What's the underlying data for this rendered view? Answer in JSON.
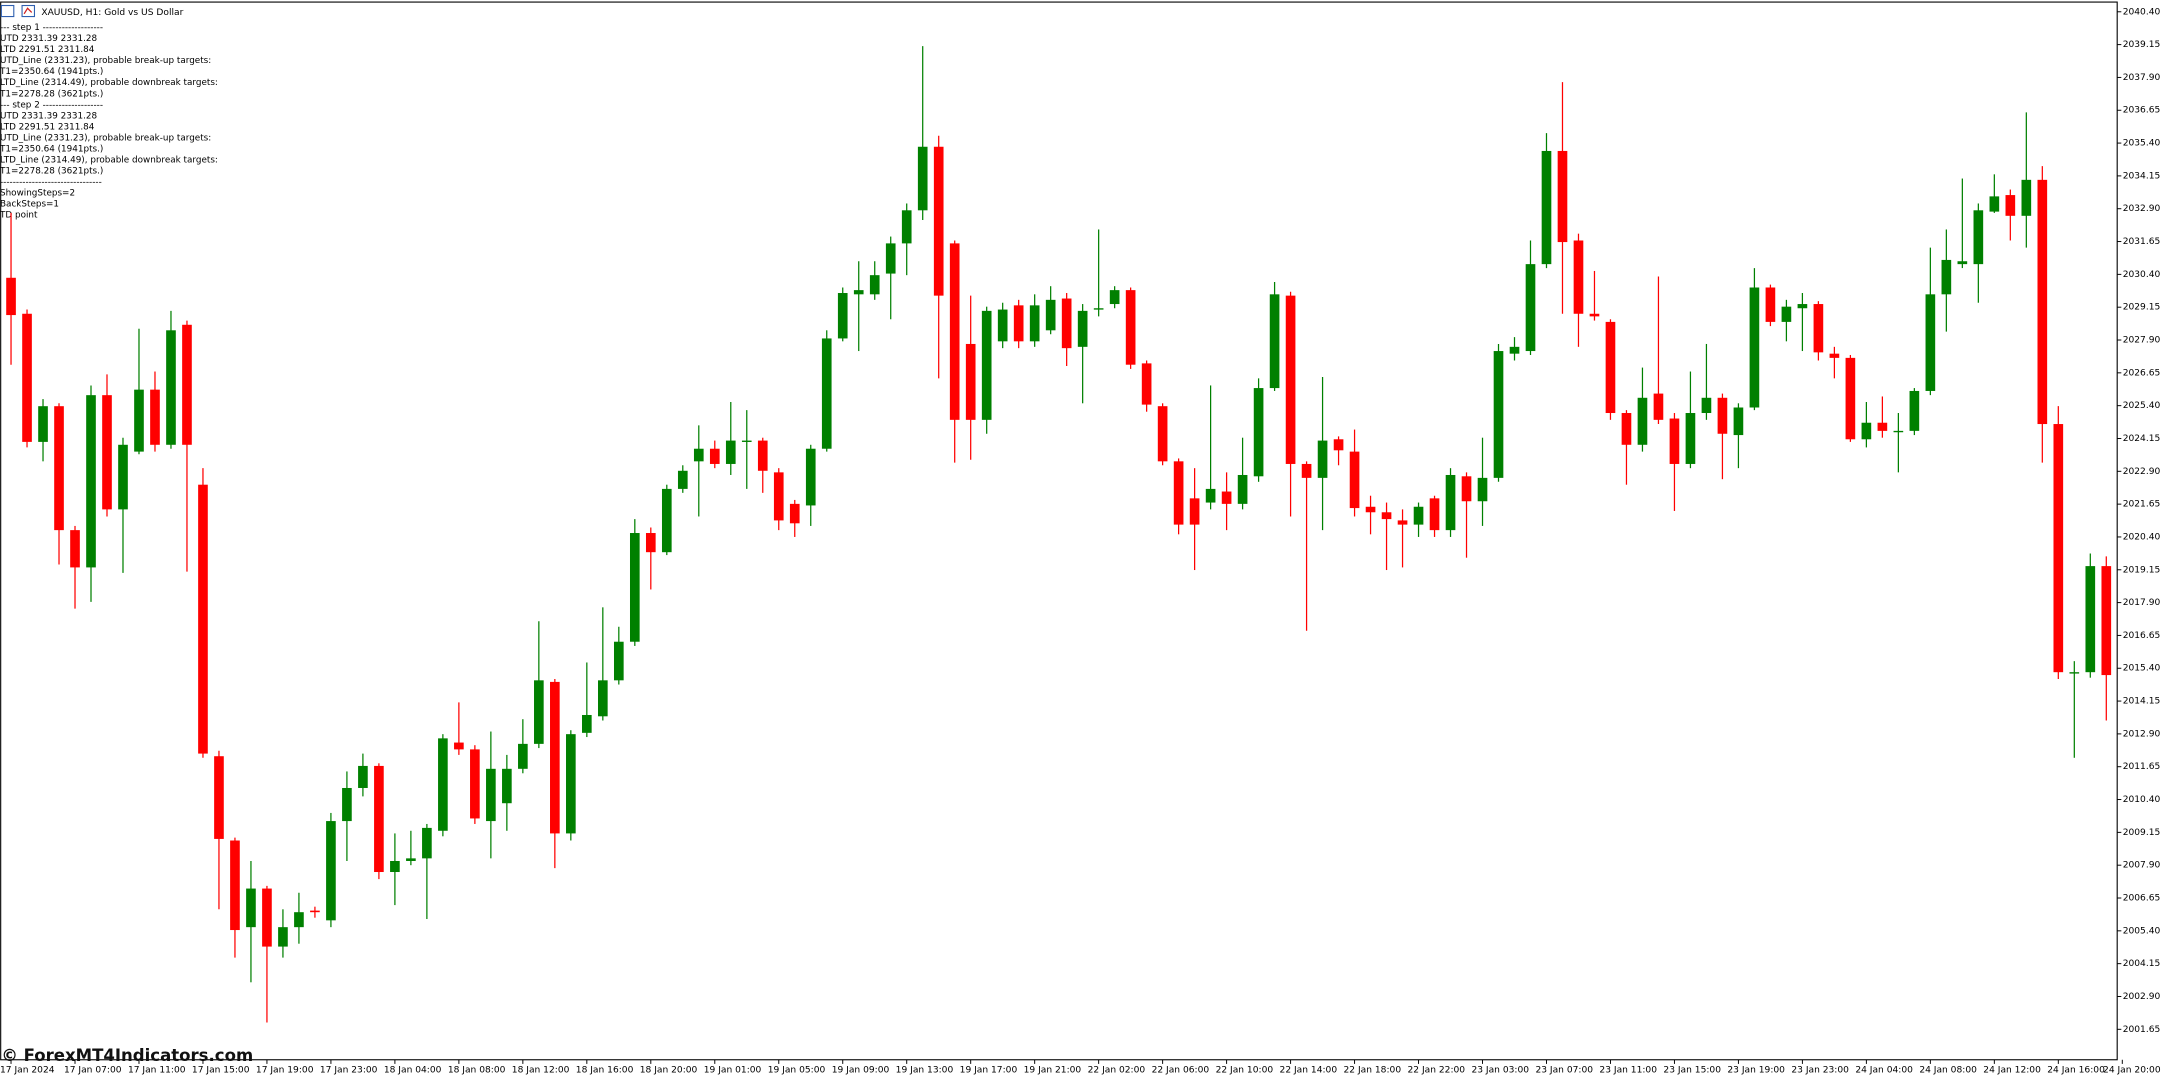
{
  "chart_data": {
    "type": "candlestick",
    "title": "XAUUSD, H1:  Gold vs US Dollar",
    "annotations": [
      "---   step 1   -------------------",
      "UTD  2331.39  2331.28",
      "LTD  2291.51  2311.84",
      "UTD_Line (2331.23), probable break-up targets:",
      "T1=2350.64 (1941pts.)",
      "LTD_Line (2314.49), probable downbreak targets:",
      "T1=2278.28 (3621pts.)",
      "---   step 2   -------------------",
      "UTD  2331.39  2331.28",
      "LTD  2291.51  2311.84",
      "UTD_Line (2331.23), probable break-up targets:",
      "T1=2350.64 (1941pts.)",
      "LTD_Line (2314.49), probable downbreak targets:",
      "T1=2278.28 (3621pts.)",
      "--------------------------------",
      "ShowingSteps=2",
      "BackSteps=1",
      "TD point"
    ],
    "watermark": "© ForexMT4Indicators.com",
    "up_color": "#008000",
    "down_color": "#ff0000",
    "open": [
      2030.27,
      2028.9,
      2024.02,
      2025.38,
      2020.66,
      2019.24,
      2025.8,
      2021.45,
      2023.65,
      2026.01,
      2023.91,
      2028.48,
      2022.39,
      2012.05,
      2008.84,
      2005.54,
      2007.01,
      2004.8,
      2005.54,
      2006.17,
      2005.8,
      2009.58,
      2010.84,
      2011.68,
      2007.64,
      2008.06,
      2008.16,
      2009.21,
      2012.57,
      2012.31,
      2009.58,
      2010.26,
      2011.57,
      2012.52,
      2014.88,
      2009.11,
      2012.94,
      2013.57,
      2014.94,
      2016.41,
      2020.55,
      2019.82,
      2022.23,
      2023.28,
      2023.76,
      2023.18,
      2024.02,
      2024.07,
      2022.86,
      2021.66,
      2021.6,
      2023.76,
      2027.96,
      2029.64,
      2029.64,
      2030.43,
      2031.58,
      2032.84,
      2035.26,
      2031.58,
      2027.75,
      2024.86,
      2027.85,
      2029.22,
      2027.85,
      2028.27,
      2029.48,
      2027.64,
      2029.06,
      2029.27,
      2029.8,
      2027.01,
      2025.38,
      2023.28,
      2021.87,
      2021.71,
      2022.13,
      2021.66,
      2022.71,
      2026.07,
      2029.59,
      2023.18,
      2022.65,
      2024.12,
      2023.65,
      2021.55,
      2021.34,
      2021.03,
      2020.87,
      2021.87,
      2020.66,
      2022.71,
      2021.76,
      2022.65,
      2027.38,
      2027.48,
      2030.79,
      2035.1,
      2031.69,
      2028.9,
      2028.59,
      2025.12,
      2023.91,
      2025.86,
      2024.91,
      2023.18,
      2025.12,
      2025.7,
      2024.28,
      2025.33,
      2029.9,
      2028.59,
      2029.11,
      2029.27,
      2027.38,
      2027.22,
      2024.12,
      2024.75,
      2024.44,
      2024.44,
      2025.96,
      2029.64,
      2030.79,
      2030.79,
      2032.79,
      2033.42,
      2032.63,
      2034.0,
      2024.7,
      2015.25,
      2015.25,
      2019.29
    ],
    "high": [
      2032.74,
      2029.06,
      2025.65,
      2025.49,
      2020.82,
      2026.17,
      2026.59,
      2024.18,
      2028.33,
      2026.7,
      2029.01,
      2028.64,
      2023.02,
      2012.26,
      2008.95,
      2008.06,
      2007.11,
      2006.22,
      2006.85,
      2006.32,
      2009.89,
      2011.47,
      2012.15,
      2011.78,
      2009.11,
      2009.21,
      2009.47,
      2012.89,
      2014.1,
      2012.47,
      2012.99,
      2012.1,
      2013.46,
      2017.19,
      2014.99,
      2013.04,
      2015.62,
      2017.72,
      2016.98,
      2021.08,
      2020.76,
      2022.39,
      2023.13,
      2024.65,
      2024.07,
      2025.54,
      2025.23,
      2024.18,
      2023.02,
      2021.81,
      2023.91,
      2028.27,
      2029.9,
      2030.9,
      2030.9,
      2031.84,
      2033.1,
      2039.09,
      2035.68,
      2031.69,
      2029.59,
      2029.17,
      2029.32,
      2029.43,
      2029.64,
      2029.95,
      2029.69,
      2029.27,
      2032.11,
      2029.95,
      2029.9,
      2027.12,
      2025.49,
      2023.39,
      2023.02,
      2026.17,
      2022.86,
      2024.18,
      2026.44,
      2030.11,
      2029.74,
      2023.28,
      2026.49,
      2024.23,
      2024.49,
      2021.97,
      2021.71,
      2021.45,
      2021.71,
      2021.97,
      2023.02,
      2022.86,
      2024.18,
      2027.75,
      2028.01,
      2031.69,
      2035.78,
      2037.72,
      2031.95,
      2030.53,
      2028.69,
      2025.23,
      2026.85,
      2030.32,
      2025.12,
      2026.7,
      2027.75,
      2025.86,
      2025.49,
      2030.64,
      2030.01,
      2029.43,
      2029.69,
      2029.38,
      2027.64,
      2027.33,
      2025.54,
      2025.75,
      2025.12,
      2026.07,
      2031.42,
      2032.11,
      2034.05,
      2033.1,
      2034.21,
      2033.63,
      2036.57,
      2034.52,
      2025.38,
      2015.67,
      2019.77,
      2019.66
    ],
    "low": [
      2026.96,
      2023.81,
      2023.28,
      2019.35,
      2017.67,
      2017.93,
      2021.18,
      2019.03,
      2023.55,
      2023.65,
      2023.76,
      2019.08,
      2011.99,
      2006.22,
      2004.38,
      2003.44,
      2001.91,
      2004.38,
      2004.91,
      2005.9,
      2005.54,
      2008.06,
      2010.52,
      2007.37,
      2006.38,
      2007.9,
      2005.85,
      2009.0,
      2012.1,
      2009.47,
      2008.16,
      2009.21,
      2011.4,
      2012.36,
      2007.79,
      2008.84,
      2012.78,
      2013.41,
      2014.78,
      2016.25,
      2018.4,
      2019.71,
      2022.08,
      2021.18,
      2023.02,
      2022.76,
      2022.23,
      2022.08,
      2020.66,
      2020.4,
      2020.82,
      2023.65,
      2027.85,
      2027.48,
      2029.43,
      2028.69,
      2030.37,
      2032.47,
      2026.44,
      2023.23,
      2023.34,
      2024.33,
      2027.59,
      2027.59,
      2027.64,
      2028.12,
      2026.91,
      2025.49,
      2028.8,
      2029.11,
      2026.8,
      2025.17,
      2023.13,
      2020.5,
      2019.14,
      2021.45,
      2020.66,
      2021.45,
      2022.5,
      2025.96,
      2021.18,
      2016.83,
      2020.66,
      2023.13,
      2021.18,
      2020.5,
      2019.14,
      2019.24,
      2020.4,
      2020.4,
      2020.4,
      2019.61,
      2020.82,
      2022.5,
      2027.12,
      2027.33,
      2030.64,
      2028.9,
      2027.64,
      2028.64,
      2024.86,
      2022.39,
      2023.65,
      2024.7,
      2021.39,
      2023.02,
      2024.86,
      2022.6,
      2023.02,
      2025.23,
      2028.43,
      2027.85,
      2027.48,
      2027.12,
      2026.44,
      2024.02,
      2023.81,
      2024.18,
      2022.86,
      2024.28,
      2025.8,
      2028.22,
      2030.64,
      2029.32,
      2032.74,
      2031.69,
      2031.42,
      2023.23,
      2014.99,
      2011.99,
      2015.04,
      2013.41
    ],
    "close": [
      2028.85,
      2024.02,
      2025.38,
      2020.66,
      2019.24,
      2025.8,
      2021.45,
      2023.91,
      2026.01,
      2023.91,
      2028.27,
      2023.91,
      2012.15,
      2008.9,
      2005.43,
      2007.01,
      2004.8,
      2005.54,
      2006.11,
      2006.11,
      2009.58,
      2010.84,
      2011.68,
      2007.64,
      2008.06,
      2008.16,
      2009.32,
      2012.73,
      2012.31,
      2009.68,
      2011.57,
      2011.57,
      2012.52,
      2014.94,
      2009.11,
      2012.89,
      2013.62,
      2014.94,
      2016.41,
      2020.55,
      2019.82,
      2022.23,
      2022.92,
      2023.76,
      2023.18,
      2024.07,
      2024.07,
      2022.92,
      2021.03,
      2020.92,
      2023.76,
      2027.96,
      2029.69,
      2029.8,
      2030.37,
      2031.58,
      2032.84,
      2035.26,
      2029.59,
      2024.86,
      2024.86,
      2029.01,
      2029.06,
      2027.85,
      2029.22,
      2029.43,
      2027.59,
      2029.01,
      2029.11,
      2029.8,
      2026.96,
      2025.44,
      2023.28,
      2020.87,
      2020.87,
      2022.23,
      2021.66,
      2022.76,
      2026.07,
      2029.64,
      2023.18,
      2022.65,
      2024.07,
      2023.7,
      2021.5,
      2021.34,
      2021.08,
      2020.87,
      2021.55,
      2020.66,
      2022.76,
      2021.76,
      2022.65,
      2027.48,
      2027.64,
      2030.79,
      2035.1,
      2031.63,
      2028.9,
      2028.8,
      2025.12,
      2023.91,
      2025.7,
      2024.86,
      2023.18,
      2025.12,
      2025.7,
      2024.33,
      2025.33,
      2029.9,
      2028.59,
      2029.17,
      2029.27,
      2027.43,
      2027.22,
      2024.12,
      2024.75,
      2024.44,
      2024.44,
      2025.96,
      2029.64,
      2030.95,
      2030.9,
      2032.84,
      2033.37,
      2032.63,
      2034.0,
      2024.7,
      2015.25,
      2015.25,
      2019.29,
      2015.14
    ],
    "ylim": [
      2000.49,
      2040.77
    ],
    "yticks": [
      2001.65,
      {
        "value": 2002.9,
        "label": "2002.90"
      },
      2004.15,
      {
        "value": 2005.4,
        "label": "2005.40"
      },
      2006.65,
      {
        "value": 2007.9,
        "label": "2007.90"
      },
      2009.15,
      {
        "value": 2010.4,
        "label": "2010.40"
      },
      2011.65,
      {
        "value": 2012.9,
        "label": "2012.90"
      },
      2014.15,
      {
        "value": 2015.4,
        "label": "2015.40"
      },
      2016.65,
      {
        "value": 2017.9,
        "label": "2017.90"
      },
      2019.15,
      {
        "value": 2020.4,
        "label": "2020.40"
      },
      2021.65,
      {
        "value": 2022.9,
        "label": "2022.90"
      },
      2024.15,
      {
        "value": 2025.4,
        "label": "2025.40"
      },
      2026.65,
      {
        "value": 2027.9,
        "label": "2027.90"
      },
      2029.15,
      {
        "value": 2030.4,
        "label": "2030.40"
      },
      2031.65,
      {
        "value": 2032.9,
        "label": "2032.90"
      },
      2034.15,
      {
        "value": 2035.4,
        "label": "2035.40"
      },
      2036.65,
      {
        "value": 2037.9,
        "label": "2037.90"
      },
      2039.15,
      {
        "value": 2040.4,
        "label": "2040.40"
      }
    ],
    "xticks": [
      {
        "value": 0,
        "label": "17 Jan 2024"
      },
      {
        "value": 4,
        "label": "17 Jan 07:00"
      },
      {
        "value": 8,
        "label": "17 Jan 11:00"
      },
      {
        "value": 12,
        "label": "17 Jan 15:00"
      },
      {
        "value": 16,
        "label": "17 Jan 19:00"
      },
      {
        "value": 20,
        "label": "17 Jan 23:00"
      },
      {
        "value": 24,
        "label": "18 Jan 04:00"
      },
      {
        "value": 28,
        "label": "18 Jan 08:00"
      },
      {
        "value": 32,
        "label": "18 Jan 12:00"
      },
      {
        "value": 36,
        "label": "18 Jan 16:00"
      },
      {
        "value": 40,
        "label": "18 Jan 20:00"
      },
      {
        "value": 44,
        "label": "19 Jan 01:00"
      },
      {
        "value": 48,
        "label": "19 Jan 05:00"
      },
      {
        "value": 52,
        "label": "19 Jan 09:00"
      },
      {
        "value": 56,
        "label": "19 Jan 13:00"
      },
      {
        "value": 60,
        "label": "19 Jan 17:00"
      },
      {
        "value": 64,
        "label": "19 Jan 21:00"
      },
      {
        "value": 68,
        "label": "22 Jan 02:00"
      },
      {
        "value": 72,
        "label": "22 Jan 06:00"
      },
      {
        "value": 76,
        "label": "22 Jan 10:00"
      },
      {
        "value": 80,
        "label": "22 Jan 14:00"
      },
      {
        "value": 84,
        "label": "22 Jan 18:00"
      },
      {
        "value": 88,
        "label": "22 Jan 22:00"
      },
      {
        "value": 92,
        "label": "23 Jan 03:00"
      },
      {
        "value": 96,
        "label": "23 Jan 07:00"
      },
      {
        "value": 100,
        "label": "23 Jan 11:00"
      },
      {
        "value": 104,
        "label": "23 Jan 15:00"
      },
      {
        "value": 108,
        "label": "23 Jan 19:00"
      },
      {
        "value": 112,
        "label": "23 Jan 23:00"
      },
      {
        "value": 116,
        "label": "24 Jan 04:00"
      },
      {
        "value": 120,
        "label": "24 Jan 08:00"
      },
      {
        "value": 124,
        "label": "24 Jan 12:00"
      },
      {
        "value": 128,
        "label": "24 Jan 16:00"
      },
      {
        "value": 132,
        "label": "24 Jan 20:00"
      }
    ],
    "grid": false
  }
}
